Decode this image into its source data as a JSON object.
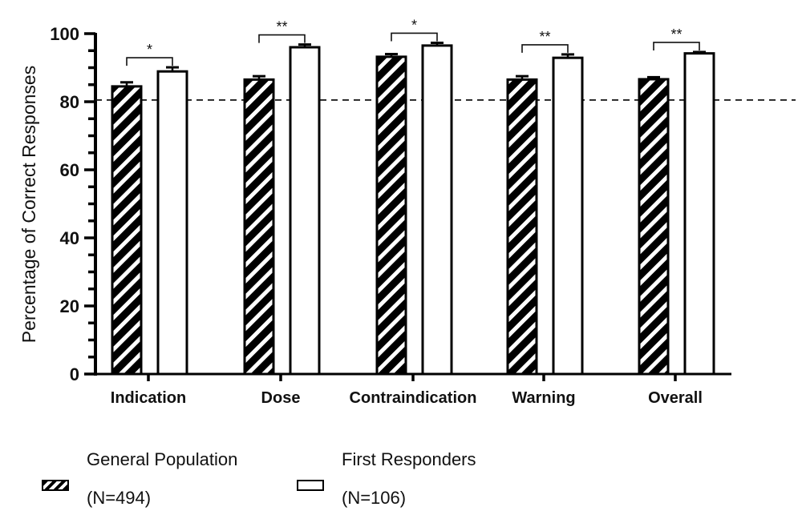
{
  "chart_data": {
    "type": "bar",
    "title": "",
    "xlabel": "",
    "ylabel": "Percentage of Correct Responses",
    "ylim": [
      0,
      100
    ],
    "yticks": [
      0,
      20,
      40,
      60,
      80,
      100
    ],
    "ytick_labels": [
      "0",
      "20",
      "40",
      "60",
      "80",
      "100"
    ],
    "minor_tick_step": 5,
    "grid": false,
    "categories": [
      "Indication",
      "Dose",
      "Contraindication",
      "Warning",
      "Overall"
    ],
    "series": [
      {
        "name": "General Population (N=494)",
        "legend_line1": "General Population",
        "legend_line2": "(N=494)",
        "pattern": "hatched",
        "values": [
          84.5,
          86.5,
          93.2,
          86.5,
          86.6
        ],
        "errors": [
          1.2,
          1.0,
          0.8,
          1.0,
          0.6
        ]
      },
      {
        "name": "First Responders (N=106)",
        "legend_line1": "First Responders",
        "legend_line2": "(N=106)",
        "pattern": "open",
        "values": [
          88.9,
          96.0,
          96.5,
          92.9,
          94.2
        ],
        "errors": [
          1.2,
          0.8,
          0.8,
          1.0,
          0.4
        ]
      }
    ],
    "significance": [
      "*",
      "**",
      "*",
      "**",
      "**"
    ],
    "reference_line": {
      "value": 80.5,
      "style": "dashed"
    },
    "legend_position": "bottom-left"
  }
}
